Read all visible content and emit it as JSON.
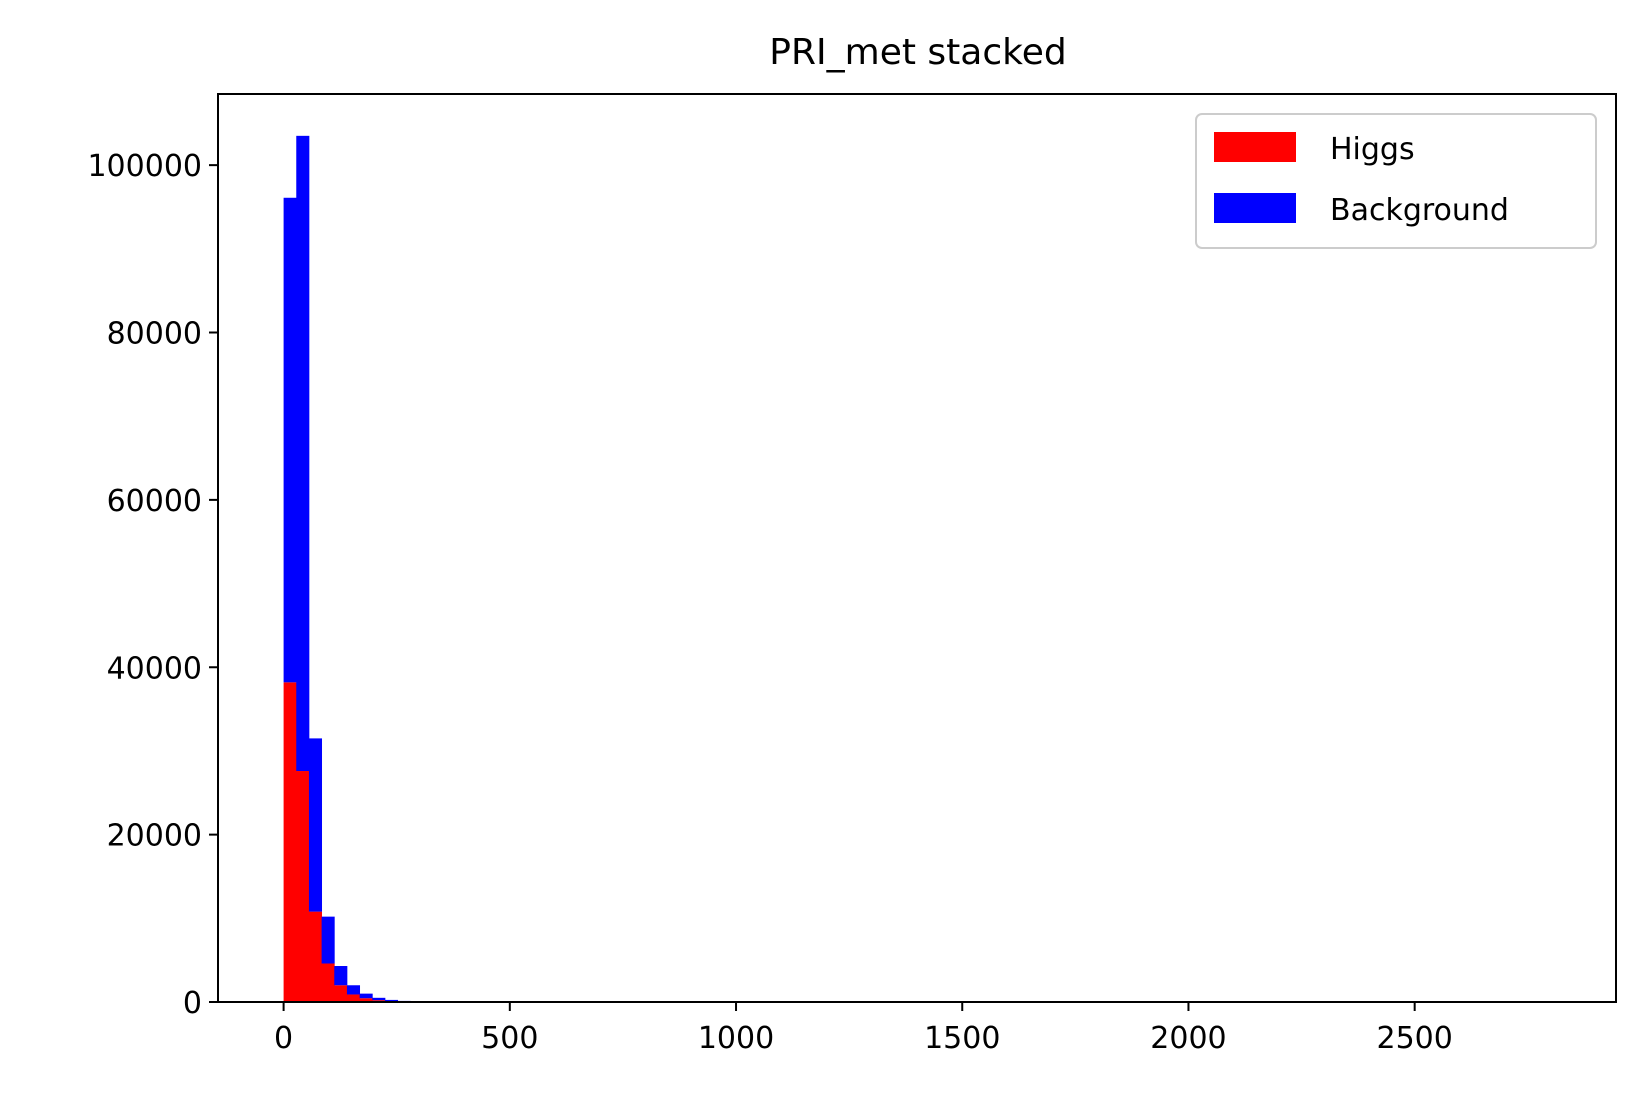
{
  "chart_data": {
    "type": "bar",
    "stacked": true,
    "title": "PRI_met stacked",
    "xlabel": "",
    "ylabel": "",
    "xlim": [
      -145,
      2945
    ],
    "ylim": [
      0,
      108500
    ],
    "xticks": [
      0,
      500,
      1000,
      1500,
      2000,
      2500
    ],
    "xtick_labels": [
      "0",
      "500",
      "1000",
      "1500",
      "2000",
      "2500"
    ],
    "yticks": [
      0,
      20000,
      40000,
      60000,
      80000,
      100000
    ],
    "ytick_labels": [
      "0",
      "20000",
      "40000",
      "60000",
      "80000",
      "100000"
    ],
    "bin_edges": [
      0,
      28,
      56,
      84,
      112,
      140,
      168,
      196,
      224,
      252,
      280,
      308
    ],
    "series": [
      {
        "name": "Higgs",
        "color": "#ff0000",
        "values": [
          38200,
          27600,
          10800,
          4600,
          2000,
          900,
          450,
          220,
          110,
          60,
          30
        ]
      },
      {
        "name": "Background",
        "color": "#0000ff",
        "values": [
          57900,
          75900,
          20700,
          5600,
          2300,
          1100,
          550,
          280,
          140,
          70,
          35
        ]
      }
    ],
    "grid": false,
    "legend_position": "top-right"
  }
}
